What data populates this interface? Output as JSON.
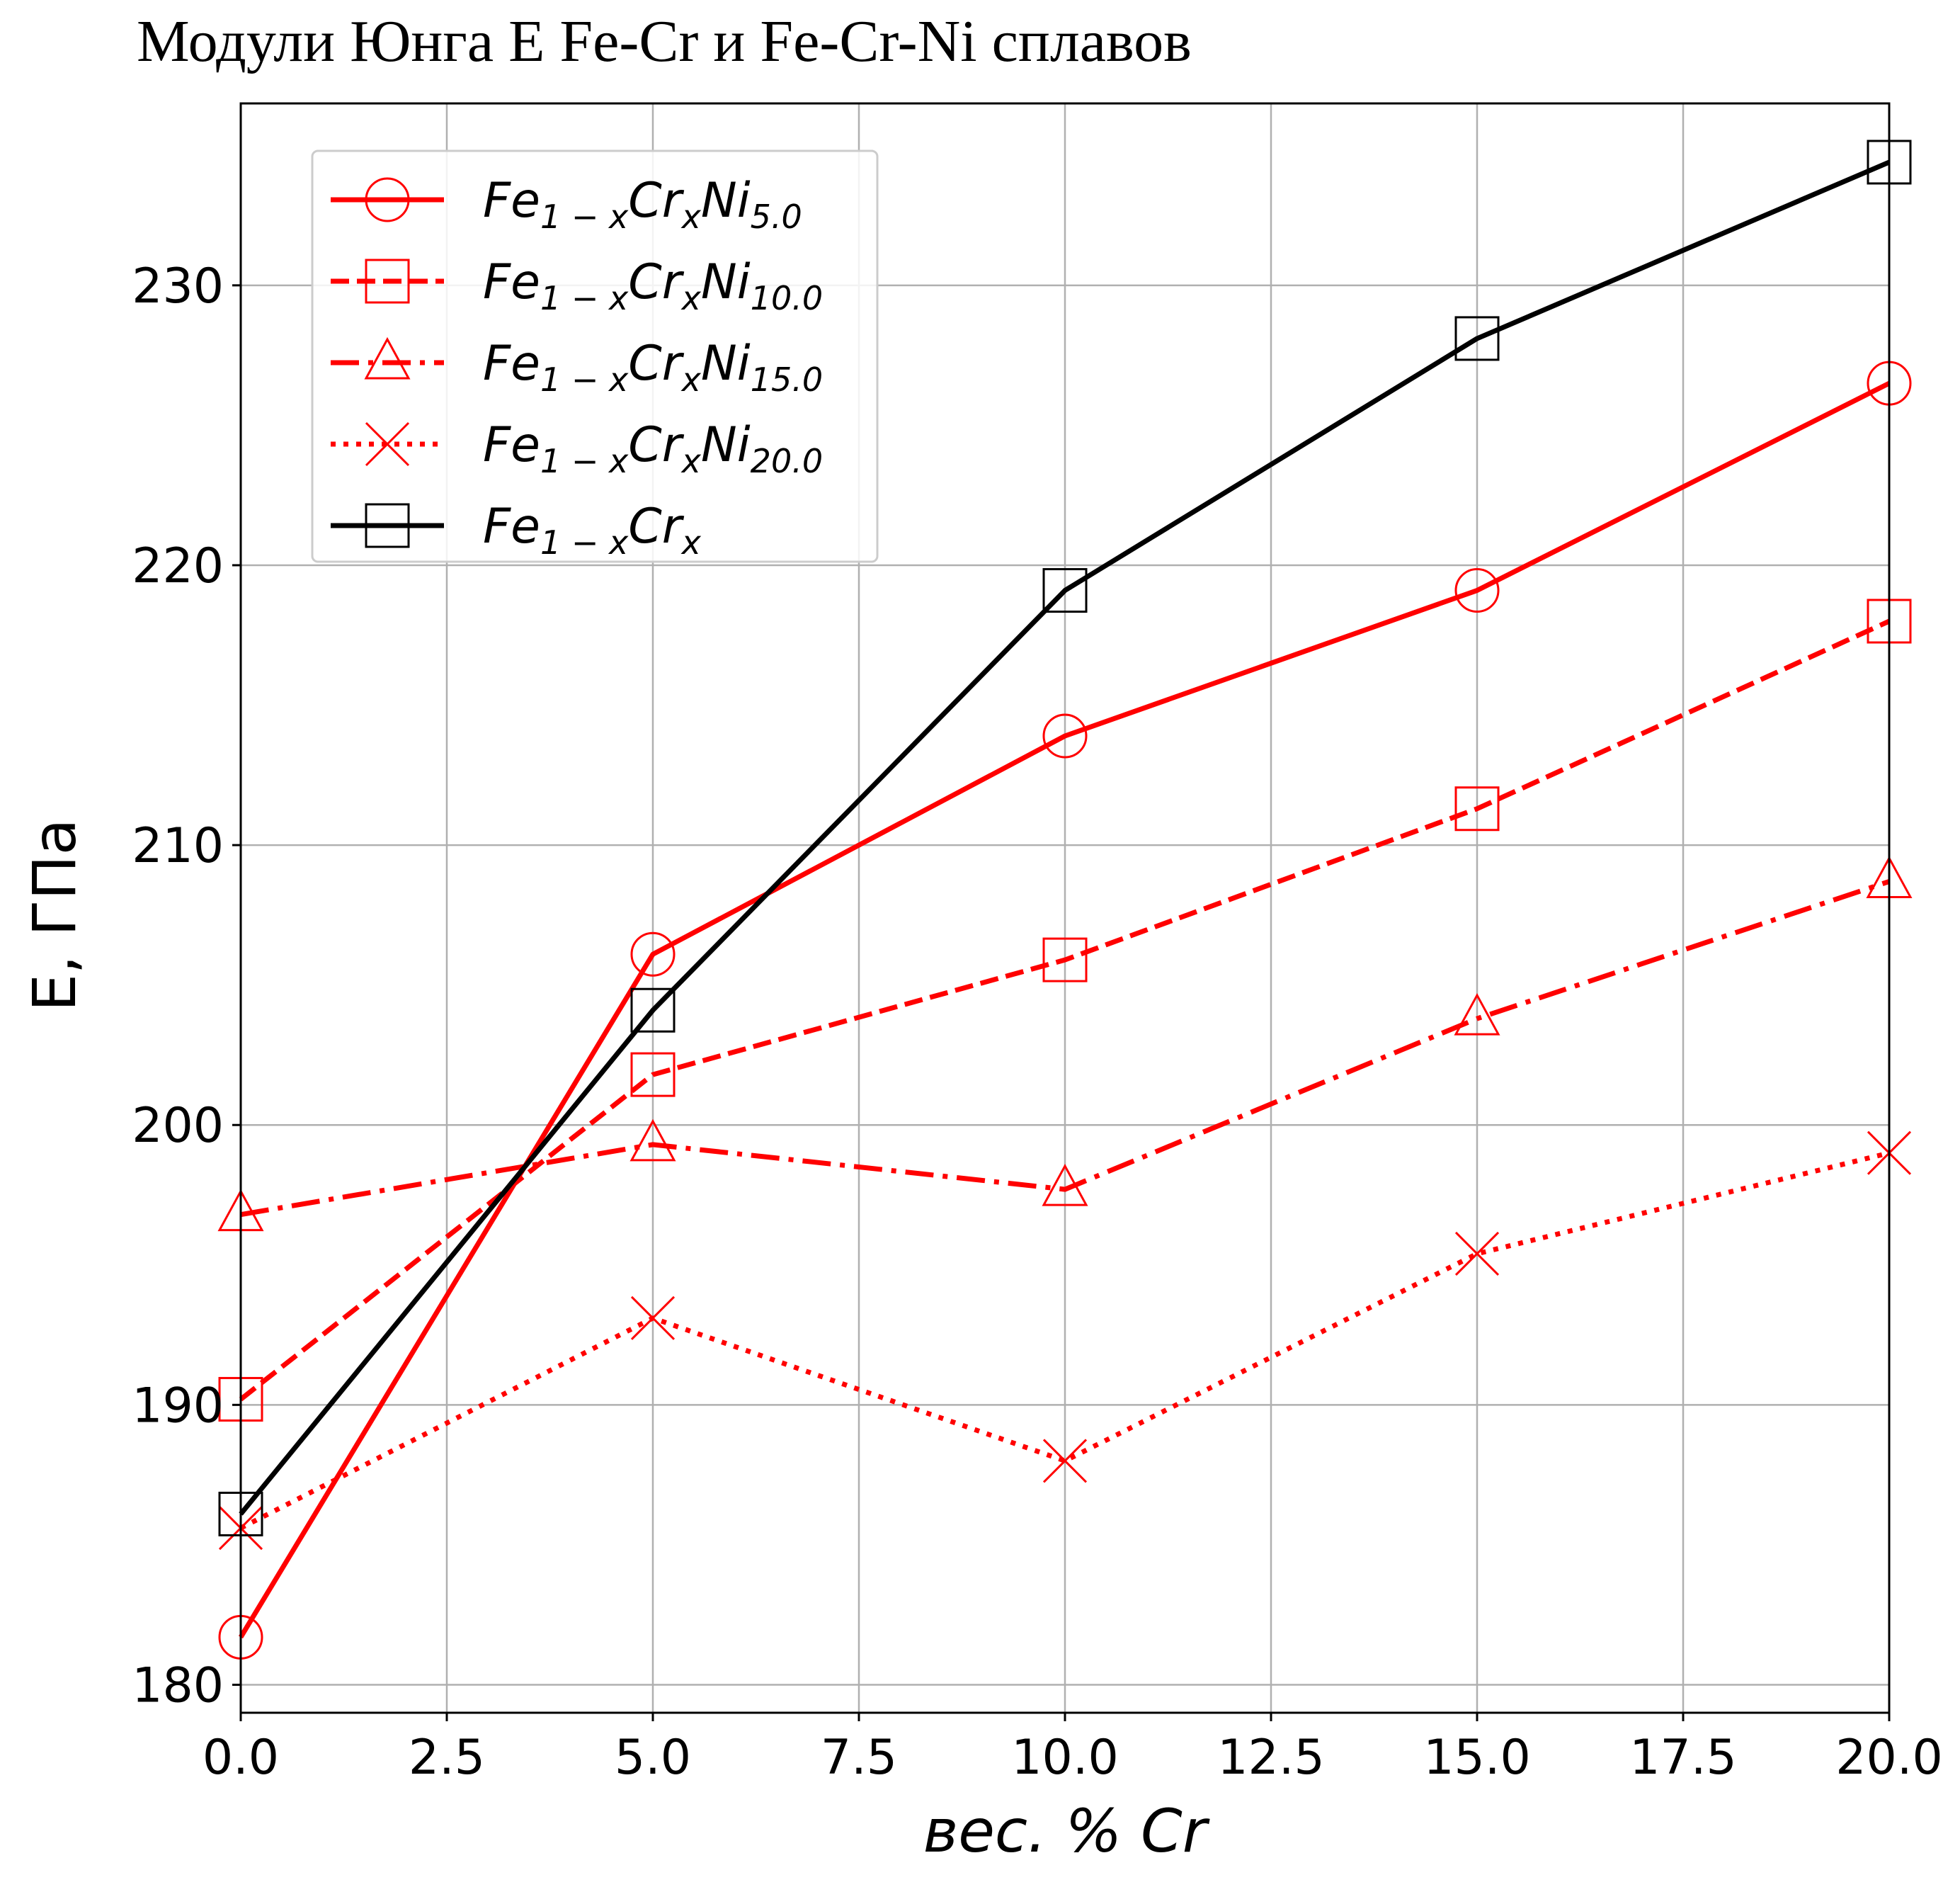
{
  "chart_data": {
    "type": "line",
    "title": "Модули Юнга E Fe-Cr и Fe-Cr-Ni сплавов",
    "xlabel": "вес. % Cr",
    "ylabel": "E, ГПа",
    "xlim": [
      0,
      20
    ],
    "ylim": [
      179,
      236.5
    ],
    "xticks": [
      0,
      2.5,
      5,
      7.5,
      10,
      12.5,
      15,
      17.5,
      20
    ],
    "xtick_labels": [
      "0.0",
      "2.5",
      "5.0",
      "7.5",
      "10.0",
      "12.5",
      "15.0",
      "17.5",
      "20.0"
    ],
    "yticks": [
      180,
      190,
      200,
      210,
      220,
      230
    ],
    "ytick_labels": [
      "180",
      "190",
      "200",
      "210",
      "220",
      "230"
    ],
    "grid": true,
    "legend_position": "top-left",
    "x": [
      0,
      5,
      10,
      15,
      20
    ],
    "series": [
      {
        "legend_base": "Fe",
        "legend_sub1": "1 − x",
        "legend_mid": "Cr",
        "legend_sub2": "x",
        "legend_ni": "Ni",
        "legend_sub3": "5.0",
        "values": [
          181.7,
          206.1,
          213.9,
          219.1,
          226.5
        ],
        "color": "#ff0000",
        "linestyle": "solid",
        "marker": "circle"
      },
      {
        "legend_base": "Fe",
        "legend_sub1": "1 − x",
        "legend_mid": "Cr",
        "legend_sub2": "x",
        "legend_ni": "Ni",
        "legend_sub3": "10.0",
        "values": [
          190.2,
          201.8,
          205.9,
          211.3,
          218.0
        ],
        "color": "#ff0000",
        "linestyle": "dashed",
        "marker": "square"
      },
      {
        "legend_base": "Fe",
        "legend_sub1": "1 − x",
        "legend_mid": "Cr",
        "legend_sub2": "x",
        "legend_ni": "Ni",
        "legend_sub3": "15.0",
        "values": [
          196.8,
          199.3,
          197.7,
          203.8,
          208.7
        ],
        "color": "#ff0000",
        "linestyle": "dashdot",
        "marker": "triangle"
      },
      {
        "legend_base": "Fe",
        "legend_sub1": "1 − x",
        "legend_mid": "Cr",
        "legend_sub2": "x",
        "legend_ni": "Ni",
        "legend_sub3": "20.0",
        "values": [
          185.6,
          193.1,
          188.0,
          195.4,
          199.0
        ],
        "color": "#ff0000",
        "linestyle": "dotted",
        "marker": "x"
      },
      {
        "legend_base": "Fe",
        "legend_sub1": "1 − x",
        "legend_mid": "Cr",
        "legend_sub2": "x",
        "legend_ni": "",
        "legend_sub3": "",
        "values": [
          186.1,
          204.1,
          219.1,
          228.1,
          234.4
        ],
        "color": "#000000",
        "linestyle": "solid",
        "marker": "square"
      }
    ]
  }
}
